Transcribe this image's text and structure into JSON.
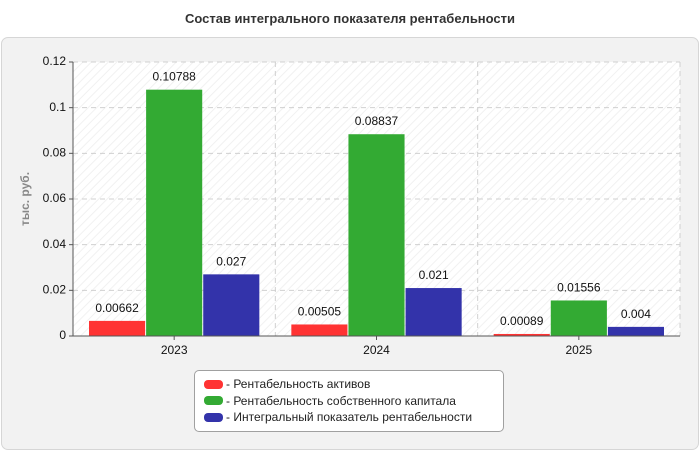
{
  "chart_data": {
    "type": "bar",
    "title": "Состав интегрального показателя рентабельности",
    "ylabel": "тыс. руб.",
    "xlabel": "",
    "categories": [
      "2023",
      "2024",
      "2025"
    ],
    "ylim": [
      0,
      0.12
    ],
    "yticks": [
      0,
      0.02,
      0.04,
      0.06,
      0.08,
      0.1,
      0.12
    ],
    "ytick_labels": [
      "0",
      "0.02",
      "0.04",
      "0.06",
      "0.08",
      "0.1",
      "0.12"
    ],
    "grid": true,
    "legend_position": "bottom",
    "series": [
      {
        "name": "Рентабельность активов",
        "legend_label": "- Рентабельность активов",
        "color": "#ff3333",
        "values": [
          0.00662,
          0.00505,
          0.00089
        ],
        "labels": [
          "0.00662",
          "0.00505",
          "0.00089"
        ]
      },
      {
        "name": "Рентабельность собственного капитала",
        "legend_label": "- Рентабельность собственного капитала",
        "color": "#33aa33",
        "values": [
          0.10788,
          0.08837,
          0.01556
        ],
        "labels": [
          "0.10788",
          "0.08837",
          "0.01556"
        ]
      },
      {
        "name": "Интегральный показатель рентабельности",
        "legend_label": "- Интегральный показатель рентабельности",
        "color": "#3333aa",
        "values": [
          0.027,
          0.021,
          0.004
        ],
        "labels": [
          "0.027",
          "0.021",
          "0.004"
        ]
      }
    ]
  }
}
